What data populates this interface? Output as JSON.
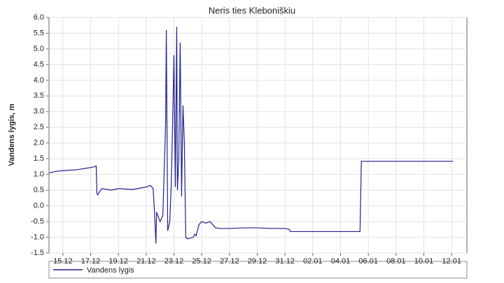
{
  "chart_data": {
    "type": "line",
    "title": "Neris ties Kleboniškiu",
    "y_label": "Vandens lygis, m",
    "x": [
      14.0,
      14.5,
      15.0,
      16.0,
      17.0,
      17.3,
      17.4,
      17.45,
      17.5,
      17.8,
      18.5,
      19.0,
      20.0,
      21.0,
      21.3,
      21.5,
      21.6,
      21.7,
      21.75,
      22.0,
      22.2,
      22.4,
      22.45,
      22.55,
      22.7,
      22.8,
      22.9,
      23.0,
      23.1,
      23.2,
      23.25,
      23.35,
      23.45,
      23.55,
      23.65,
      23.75,
      23.85,
      24.0,
      24.4,
      24.5,
      24.6,
      24.8,
      25.0,
      25.3,
      25.6,
      25.8,
      26.0,
      26.3,
      27.0,
      28.0,
      29.0,
      30.0,
      31.0,
      31.3,
      31.4,
      35.0,
      36.4,
      36.45,
      36.5,
      43.1
    ],
    "series": [
      {
        "name": "Vandens lygis",
        "color": "#1f1f8f",
        "values": [
          1.05,
          1.1,
          1.12,
          1.15,
          1.22,
          1.25,
          1.27,
          0.4,
          0.35,
          0.55,
          0.5,
          0.55,
          0.52,
          0.6,
          0.65,
          0.55,
          -0.2,
          -1.2,
          -0.2,
          -0.5,
          -0.3,
          2.6,
          5.6,
          -0.8,
          -0.5,
          0.6,
          2.5,
          4.8,
          0.6,
          5.7,
          0.5,
          1.5,
          5.2,
          0.3,
          3.2,
          2.0,
          -1.0,
          -1.05,
          -1.0,
          -0.9,
          -0.95,
          -0.6,
          -0.5,
          -0.55,
          -0.5,
          -0.6,
          -0.7,
          -0.72,
          -0.72,
          -0.7,
          -0.7,
          -0.72,
          -0.72,
          -0.75,
          -0.82,
          -0.82,
          -0.82,
          0.3,
          1.42,
          1.42
        ]
      }
    ],
    "xlim": [
      14.0,
      44.1
    ],
    "xticks": [
      {
        "value": 15,
        "label": "15.12"
      },
      {
        "value": 17,
        "label": "17.12"
      },
      {
        "value": 19,
        "label": "19.12"
      },
      {
        "value": 21,
        "label": "21.12"
      },
      {
        "value": 23,
        "label": "23.12"
      },
      {
        "value": 25,
        "label": "25.12"
      },
      {
        "value": 27,
        "label": "27.12"
      },
      {
        "value": 29,
        "label": "29.12"
      },
      {
        "value": 31,
        "label": "31.12"
      },
      {
        "value": 33,
        "label": "02.01"
      },
      {
        "value": 35,
        "label": "04.01"
      },
      {
        "value": 37,
        "label": "06.01"
      },
      {
        "value": 39,
        "label": "08.01"
      },
      {
        "value": 41,
        "label": "10.01"
      },
      {
        "value": 43,
        "label": "12.01"
      }
    ],
    "ylim": [
      -1.5,
      6.0
    ],
    "yticks": [
      {
        "value": -1.5,
        "label": "-1.5"
      },
      {
        "value": -1,
        "label": "-1.0"
      },
      -0.5,
      {
        "value": 0,
        "label": "0.0"
      },
      0.5,
      {
        "value": 1,
        "label": "1.0"
      },
      1.5,
      {
        "value": 2,
        "label": "2.0"
      },
      2.5,
      {
        "value": 3,
        "label": "3.0"
      },
      3.5,
      {
        "value": 4,
        "label": "4.0"
      },
      4.5,
      {
        "value": 5,
        "label": "5.0"
      },
      5.5,
      {
        "value": 6,
        "label": "6.0"
      }
    ],
    "grid": true
  }
}
